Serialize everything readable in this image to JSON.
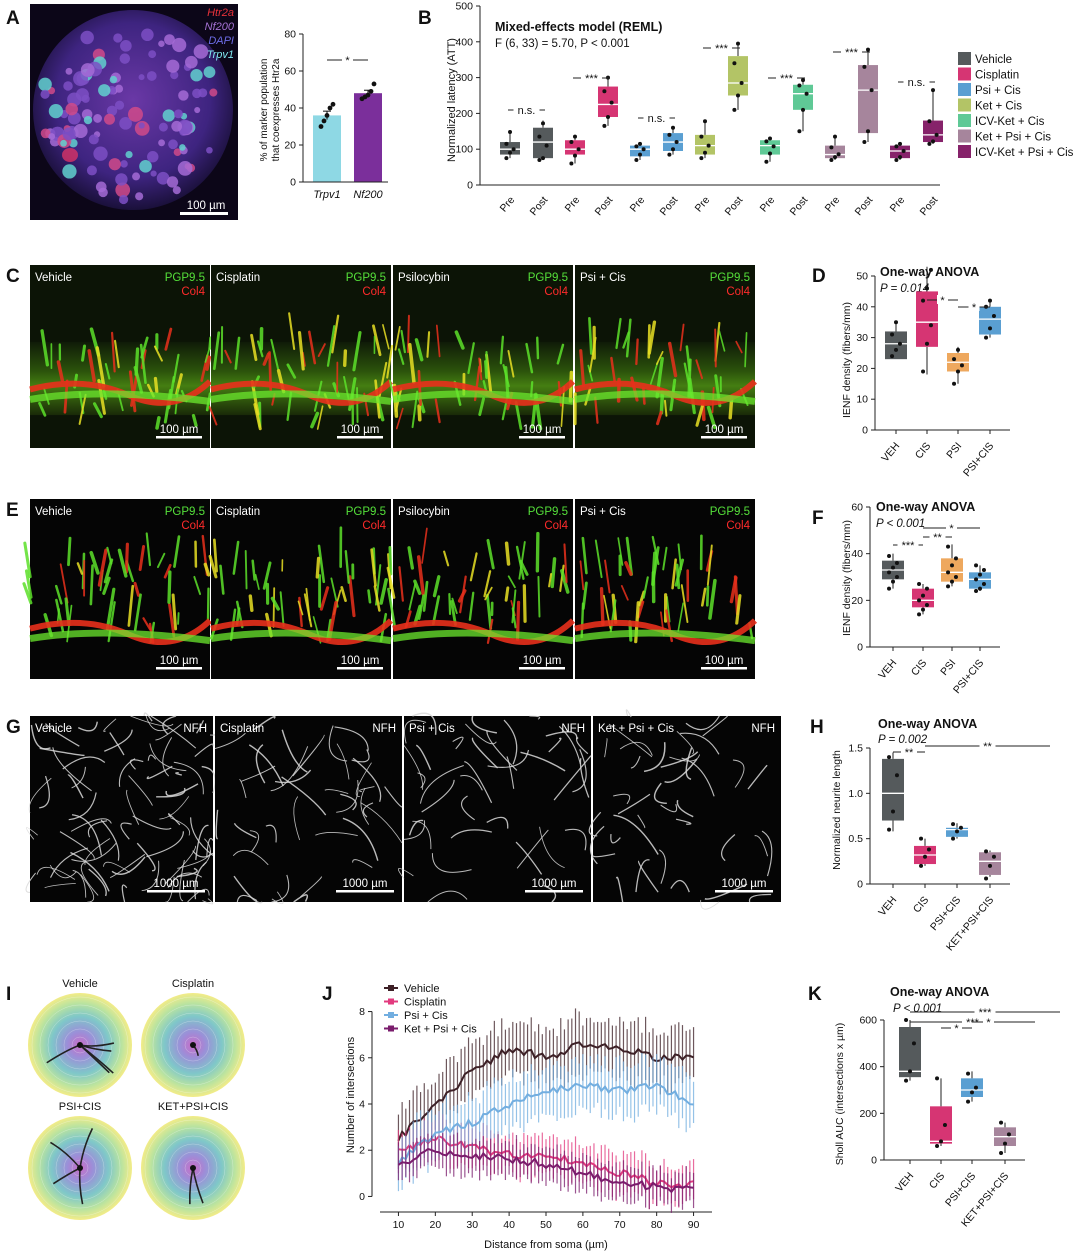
{
  "panels": {
    "a": {
      "letter": "A",
      "markers": [
        "Htr2a",
        "Nf200",
        "DAPI",
        "Trpv1"
      ],
      "scale": "100 µm",
      "bar": {
        "ylabel_1": "% of marker population",
        "ylabel_2": "that coexpresses Htr2a",
        "categories": [
          "Trpv1",
          "Nf200"
        ],
        "sig": "*"
      }
    },
    "b": {
      "letter": "B",
      "title": "Mixed-effects model (REML)",
      "stat": "F (6, 33) = 5.70, P < 0.001",
      "ylabel": "Normalized latency (ATT)",
      "tick_pre": "Pre",
      "tick_post": "Post",
      "sig": [
        "n.s.",
        "***",
        "n.s.",
        "***",
        "***",
        "***",
        "n.s."
      ],
      "legend": [
        "Vehicle",
        "Cisplatin",
        "Psi + Cis",
        "Ket + Cis",
        "ICV-Ket + Cis",
        "Ket + Psi + Cis",
        "ICV-Ket + Psi + Cis"
      ]
    },
    "c": {
      "letter": "C",
      "tiles": [
        "Vehicle",
        "Cisplatin",
        "Psilocybin",
        "Psi + Cis"
      ],
      "m1": "PGP9.5",
      "m2": "Col4",
      "scale": "100 µm"
    },
    "d": {
      "letter": "D",
      "test": "One-way ANOVA",
      "p": "P = 0.014",
      "ylabel": "IENF density (fibers/mm)",
      "categories": [
        "VEH",
        "CIS",
        "PSI",
        "PSI+CIS"
      ],
      "sig": [
        "*",
        "*"
      ]
    },
    "e": {
      "letter": "E",
      "tiles": [
        "Vehicle",
        "Cisplatin",
        "Psilocybin",
        "Psi + Cis"
      ],
      "m1": "PGP9.5",
      "m2": "Col4",
      "scale": "100 µm"
    },
    "f": {
      "letter": "F",
      "test": "One-way ANOVA",
      "p": "P < 0.001",
      "ylabel": "IENF density (fibers/mm)",
      "categories": [
        "VEH",
        "CIS",
        "PSI",
        "PSI+CIS"
      ],
      "sig": [
        "***",
        "**",
        "*"
      ]
    },
    "g": {
      "letter": "G",
      "tiles": [
        "Vehicle",
        "Cisplatin",
        "Psi + Cis",
        "Ket + Psi + Cis"
      ],
      "marker": "NFH",
      "scale": "1000 µm"
    },
    "h": {
      "letter": "H",
      "test": "One-way ANOVA",
      "p": "P = 0.002",
      "ylabel": "Normalized neurite length",
      "categories": [
        "VEH",
        "CIS",
        "PSI+CIS",
        "KET+PSI+CIS"
      ],
      "sig": [
        "**",
        "**"
      ]
    },
    "i": {
      "letter": "I",
      "tiles": [
        "Vehicle",
        "Cisplatin",
        "PSI+CIS",
        "KET+PSI+CIS"
      ]
    },
    "j": {
      "letter": "J",
      "ylabel": "Number of intersections",
      "xlabel": "Distance from soma (µm)",
      "legend": [
        "Vehicle",
        "Cisplatin",
        "Psi + Cis",
        "Ket + Psi + Cis"
      ]
    },
    "k": {
      "letter": "K",
      "test": "One-way ANOVA",
      "p": "P < 0.001",
      "ylabel": "Sholl AUC (intersections x µm)",
      "categories": [
        "VEH",
        "CIS",
        "PSI+CIS",
        "KET+PSI+CIS"
      ],
      "sig": [
        "***",
        "***",
        "*",
        "*"
      ]
    }
  },
  "colors": {
    "vehicle": "#555a5c",
    "cisplatin": "#d63573",
    "psi_cis": "#5a9fd2",
    "ket_cis": "#b3c466",
    "icv_ket_cis": "#5fc996",
    "ket_psi_cis": "#a6859c",
    "icv_ket_psi_cis": "#86226a",
    "psi": "#eea85e",
    "trpv1": "#8ed8e4",
    "nf200": "#7b2f9b"
  },
  "chart_data": [
    {
      "panel": "A",
      "type": "bar",
      "categories": [
        "Trpv1",
        "Nf200"
      ],
      "values": [
        36,
        48
      ],
      "ylim": [
        0,
        80
      ],
      "yticks": [
        0,
        20,
        40,
        60,
        80
      ],
      "points": [
        [
          30,
          33,
          36,
          40,
          42
        ],
        [
          45,
          46,
          47,
          49,
          53
        ]
      ],
      "sem": [
        2.3,
        1.6
      ]
    },
    {
      "panel": "B",
      "type": "box",
      "ylim": [
        0,
        500
      ],
      "yticks": [
        0,
        100,
        200,
        300,
        400,
        500
      ],
      "series": [
        {
          "name": "Vehicle",
          "pre": {
            "min": 75,
            "q1": 85,
            "med": 100,
            "q3": 120,
            "max": 150,
            "points": [
              75,
              90,
              100,
              115,
              148
            ]
          },
          "post": {
            "min": 70,
            "q1": 75,
            "med": 120,
            "q3": 160,
            "max": 180,
            "points": [
              70,
              75,
              110,
              135,
              172
            ]
          }
        },
        {
          "name": "Cisplatin",
          "pre": {
            "min": 60,
            "q1": 85,
            "med": 100,
            "q3": 125,
            "max": 135,
            "points": [
              60,
              82,
              100,
              120,
              135
            ]
          },
          "post": {
            "min": 165,
            "q1": 190,
            "med": 225,
            "q3": 275,
            "max": 300,
            "points": [
              165,
              190,
              230,
              262,
              300
            ]
          }
        },
        {
          "name": "Psi + Cis",
          "pre": {
            "min": 70,
            "q1": 80,
            "med": 100,
            "q3": 110,
            "max": 115,
            "points": [
              70,
              85,
              100,
              108,
              115
            ]
          },
          "post": {
            "min": 85,
            "q1": 95,
            "med": 120,
            "q3": 145,
            "max": 160,
            "points": [
              85,
              100,
              120,
              140,
              160
            ]
          }
        },
        {
          "name": "Ket + Cis",
          "pre": {
            "min": 75,
            "q1": 85,
            "med": 110,
            "q3": 140,
            "max": 180,
            "points": [
              75,
              90,
              110,
              135,
              178
            ]
          },
          "post": {
            "min": 210,
            "q1": 250,
            "med": 285,
            "q3": 360,
            "max": 395,
            "points": [
              210,
              250,
              285,
              340,
              395
            ]
          }
        },
        {
          "name": "ICV-Ket + Cis",
          "pre": {
            "min": 65,
            "q1": 85,
            "med": 110,
            "q3": 125,
            "max": 130,
            "points": [
              65,
              88,
              108,
              122,
              130
            ]
          },
          "post": {
            "min": 150,
            "q1": 210,
            "med": 255,
            "q3": 280,
            "max": 295,
            "points": [
              150,
              210,
              255,
              278,
              293
            ]
          }
        },
        {
          "name": "Ket + Psi + Cis",
          "pre": {
            "min": 70,
            "q1": 75,
            "med": 85,
            "q3": 110,
            "max": 135,
            "points": [
              70,
              78,
              86,
              105,
              135
            ]
          },
          "post": {
            "min": 120,
            "q1": 145,
            "med": 265,
            "q3": 335,
            "max": 380,
            "points": [
              120,
              150,
              265,
              330,
              378
            ]
          }
        },
        {
          "name": "ICV-Ket + Psi + Cis",
          "pre": {
            "min": 70,
            "q1": 75,
            "med": 95,
            "q3": 110,
            "max": 115,
            "points": [
              70,
              78,
              95,
              108,
              115
            ]
          },
          "post": {
            "min": 115,
            "q1": 120,
            "med": 140,
            "q3": 180,
            "max": 265,
            "points": [
              115,
              122,
              140,
              178,
              265
            ]
          }
        }
      ]
    },
    {
      "panel": "D",
      "type": "box",
      "ylim": [
        0,
        50
      ],
      "yticks": [
        0,
        10,
        20,
        30,
        40,
        50
      ],
      "series": [
        {
          "name": "VEH",
          "min": 23,
          "q1": 23,
          "med": 28,
          "q3": 32,
          "max": 35,
          "points": [
            24,
            26,
            28,
            31,
            35
          ]
        },
        {
          "name": "CIS",
          "min": 18,
          "q1": 27,
          "med": 35,
          "q3": 45,
          "max": 53,
          "points": [
            19,
            28,
            34,
            42,
            46,
            52
          ]
        },
        {
          "name": "PSI",
          "min": 15,
          "q1": 19,
          "med": 22,
          "q3": 25,
          "max": 27,
          "points": [
            15,
            19,
            21,
            23,
            26
          ]
        },
        {
          "name": "PSI+CIS",
          "min": 30,
          "q1": 31,
          "med": 36,
          "q3": 40,
          "max": 42,
          "points": [
            30,
            33,
            37,
            40,
            42
          ]
        }
      ]
    },
    {
      "panel": "F",
      "type": "box",
      "ylim": [
        0,
        60
      ],
      "yticks": [
        0,
        20,
        40,
        60
      ],
      "series": [
        {
          "name": "VEH",
          "min": 25,
          "q1": 29,
          "med": 33,
          "q3": 37,
          "max": 40,
          "points": [
            25,
            28,
            30,
            32,
            34,
            36,
            39
          ]
        },
        {
          "name": "CIS",
          "min": 14,
          "q1": 17,
          "med": 20,
          "q3": 25,
          "max": 27,
          "points": [
            14,
            16,
            18,
            20,
            22,
            25,
            27
          ]
        },
        {
          "name": "PSI",
          "min": 26,
          "q1": 28,
          "med": 32,
          "q3": 38,
          "max": 44,
          "points": [
            26,
            28,
            30,
            32,
            35,
            38,
            43
          ]
        },
        {
          "name": "PSI+CIS",
          "min": 24,
          "q1": 25,
          "med": 29,
          "q3": 32,
          "max": 35,
          "points": [
            24,
            25,
            27,
            29,
            31,
            33,
            35
          ]
        }
      ]
    },
    {
      "panel": "H",
      "type": "box",
      "ylim": [
        0,
        1.5
      ],
      "yticks": [
        0,
        0.5,
        1.0,
        1.5
      ],
      "series": [
        {
          "name": "VEH",
          "min": 0.58,
          "q1": 0.7,
          "med": 1.0,
          "q3": 1.38,
          "max": 1.45,
          "points": [
            0.6,
            0.8,
            1.2,
            1.4
          ]
        },
        {
          "name": "CIS",
          "min": 0.2,
          "q1": 0.22,
          "med": 0.32,
          "q3": 0.42,
          "max": 0.5,
          "points": [
            0.2,
            0.3,
            0.38,
            0.5
          ]
        },
        {
          "name": "PSI+CIS",
          "min": 0.5,
          "q1": 0.52,
          "med": 0.6,
          "q3": 0.62,
          "max": 0.67,
          "points": [
            0.5,
            0.58,
            0.62,
            0.66
          ]
        },
        {
          "name": "KET+PSI+CIS",
          "min": 0.08,
          "q1": 0.1,
          "med": 0.25,
          "q3": 0.35,
          "max": 0.37,
          "points": [
            0.06,
            0.2,
            0.3,
            0.36
          ]
        }
      ]
    },
    {
      "panel": "J",
      "type": "line",
      "xlim": [
        5,
        95
      ],
      "ylim": [
        -0.5,
        8.5
      ],
      "xticks": [
        10,
        20,
        30,
        40,
        50,
        60,
        70,
        80,
        90
      ],
      "yticks": [
        0,
        2,
        4,
        6,
        8
      ],
      "series": [
        {
          "name": "Vehicle",
          "x": [
            10,
            20,
            30,
            40,
            50,
            60,
            70,
            80,
            90
          ],
          "y": [
            2.5,
            4.0,
            5.4,
            6.4,
            6.0,
            6.6,
            6.4,
            6.0,
            6.0
          ],
          "err": 1.4
        },
        {
          "name": "Cisplatin",
          "x": [
            10,
            20,
            30,
            40,
            50,
            60,
            70,
            80,
            90
          ],
          "y": [
            2.0,
            2.5,
            2.1,
            1.8,
            1.8,
            1.5,
            1.0,
            0.6,
            0.5
          ],
          "err": 1.0
        },
        {
          "name": "Psi + Cis",
          "x": [
            10,
            20,
            30,
            40,
            50,
            60,
            70,
            80,
            90
          ],
          "y": [
            1.5,
            2.7,
            3.2,
            4.0,
            4.6,
            4.8,
            4.6,
            4.8,
            4.0
          ],
          "err": 1.3
        },
        {
          "name": "Ket + Psi + Cis",
          "x": [
            10,
            20,
            30,
            40,
            50,
            60,
            70,
            80,
            90
          ],
          "y": [
            1.4,
            2.0,
            1.8,
            1.6,
            1.4,
            1.0,
            0.6,
            0.4,
            0.3
          ],
          "err": 0.9
        }
      ]
    },
    {
      "panel": "K",
      "type": "box",
      "ylim": [
        0,
        600
      ],
      "yticks": [
        0,
        200,
        400,
        600
      ],
      "series": [
        {
          "name": "VEH",
          "min": 340,
          "q1": 355,
          "med": 380,
          "q3": 570,
          "max": 600,
          "points": [
            340,
            380,
            500,
            600
          ]
        },
        {
          "name": "CIS",
          "min": 60,
          "q1": 70,
          "med": 80,
          "q3": 230,
          "max": 350,
          "points": [
            60,
            80,
            150,
            350
          ]
        },
        {
          "name": "PSI+CIS",
          "min": 250,
          "q1": 270,
          "med": 300,
          "q3": 350,
          "max": 380,
          "points": [
            250,
            290,
            310,
            370
          ]
        },
        {
          "name": "KET+PSI+CIS",
          "min": 30,
          "q1": 60,
          "med": 100,
          "q3": 140,
          "max": 160,
          "points": [
            30,
            70,
            110,
            160
          ]
        }
      ]
    }
  ]
}
